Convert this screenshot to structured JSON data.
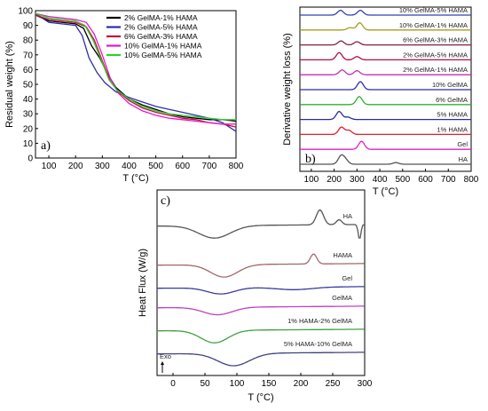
{
  "chart_data": [
    {
      "type": "line",
      "panel_label": "a)",
      "xlabel": "T (°C)",
      "ylabel": "Residual weight (%)",
      "xlim": [
        50,
        800
      ],
      "ylim": [
        0,
        100
      ],
      "xticks": [
        "100",
        "200",
        "300",
        "400",
        "500",
        "600",
        "700",
        "800"
      ],
      "yticks": [
        "0",
        "10",
        "20",
        "30",
        "40",
        "50",
        "60",
        "70",
        "80",
        "90",
        "100"
      ],
      "legend_position": "top-right",
      "series": [
        {
          "name": "2% GelMA-1% HAMA",
          "color": "#000000",
          "x": [
            50,
            100,
            200,
            230,
            260,
            290,
            320,
            350,
            400,
            450,
            500,
            550,
            600,
            650,
            700,
            750,
            800
          ],
          "y": [
            97,
            93,
            91,
            88,
            76,
            68,
            57,
            48,
            40,
            36,
            33,
            30,
            28,
            27,
            26,
            26,
            25
          ]
        },
        {
          "name": "2% GelMA-5% HAMA",
          "color": "#2e2ea8",
          "x": [
            50,
            100,
            200,
            225,
            250,
            280,
            310,
            350,
            400,
            450,
            500,
            550,
            600,
            650,
            700,
            750,
            800
          ],
          "y": [
            98,
            92,
            90,
            83,
            68,
            58,
            51,
            45,
            41,
            38,
            35,
            33,
            31,
            29,
            27,
            24,
            18
          ]
        },
        {
          "name": "6% GelMA-3% HAMA",
          "color": "#c0103a",
          "x": [
            50,
            100,
            200,
            240,
            270,
            300,
            330,
            360,
            400,
            450,
            500,
            550,
            600,
            650,
            700,
            750,
            800
          ],
          "y": [
            97,
            94,
            92,
            89,
            80,
            66,
            52,
            45,
            39,
            34,
            31,
            29,
            27,
            26,
            24,
            23,
            21
          ]
        },
        {
          "name": "10% GelMA-1% HAMA",
          "color": "#e619c8",
          "x": [
            50,
            100,
            200,
            240,
            270,
            300,
            330,
            360,
            400,
            450,
            500,
            550,
            600,
            650,
            700,
            750,
            800
          ],
          "y": [
            98,
            96,
            94,
            92,
            84,
            70,
            54,
            44,
            37,
            32,
            29,
            27,
            26,
            25,
            24,
            23,
            23
          ]
        },
        {
          "name": "10% GelMA-5% HAMA",
          "color": "#2ed12e",
          "x": [
            50,
            100,
            200,
            235,
            265,
            295,
            325,
            355,
            400,
            450,
            500,
            550,
            600,
            650,
            700,
            750,
            800
          ],
          "y": [
            98,
            95,
            93,
            90,
            80,
            67,
            53,
            46,
            40,
            35,
            32,
            30,
            29,
            28,
            27,
            26,
            26
          ]
        }
      ]
    },
    {
      "type": "line",
      "panel_label": "b)",
      "xlabel": "T (°C)",
      "ylabel": "Derivative weight loss (%)",
      "xlim": [
        50,
        800
      ],
      "xticks": [
        "100",
        "200",
        "300",
        "400",
        "500",
        "600",
        "700",
        "800"
      ],
      "y_ticks_shown": false,
      "series": [
        {
          "name": "HA",
          "color": "#555555",
          "peaks": [
            [
              230,
              1.0
            ],
            [
              250,
              0.5
            ],
            [
              470,
              0.2
            ]
          ]
        },
        {
          "name": "Gel",
          "color": "#e61ec8",
          "peaks": [
            [
              320,
              1.0
            ]
          ]
        },
        {
          "name": "1% HAMA",
          "color": "#e0202a",
          "peaks": [
            [
              232,
              0.9
            ],
            [
              265,
              0.5
            ]
          ]
        },
        {
          "name": "5% HAMA",
          "color": "#2a2aa8",
          "peaks": [
            [
              222,
              1.0
            ],
            [
              260,
              0.3
            ]
          ]
        },
        {
          "name": "6% GelMA",
          "color": "#30b030",
          "peaks": [
            [
              310,
              1.0
            ]
          ]
        },
        {
          "name": "10% GelMA",
          "color": "#2a2aa8",
          "peaks": [
            [
              315,
              1.0
            ]
          ]
        },
        {
          "name": "2% GelMA-1% HAMA",
          "color": "#c030b0",
          "peaks": [
            [
              235,
              0.6
            ],
            [
              300,
              0.5
            ]
          ]
        },
        {
          "name": "2% GelMA-5% HAMA",
          "color": "#b01040",
          "peaks": [
            [
              222,
              0.9
            ],
            [
              300,
              0.4
            ]
          ]
        },
        {
          "name": "6% GelMA-3% HAMA",
          "color": "#802040",
          "peaks": [
            [
              230,
              0.5
            ],
            [
              300,
              0.4
            ]
          ]
        },
        {
          "name": "10% GelMA-1% HAMA",
          "color": "#a0a020",
          "peaks": [
            [
              312,
              0.9
            ],
            [
              270,
              0.3
            ]
          ]
        },
        {
          "name": "10% GelMA-5% HAMA",
          "color": "#3040b0",
          "peaks": [
            [
              228,
              0.6
            ],
            [
              315,
              0.6
            ]
          ]
        }
      ]
    },
    {
      "type": "line",
      "panel_label": "c)",
      "xlabel": "T (°C)",
      "ylabel": "Heat Flux (W/g)",
      "xlim": [
        -25,
        300
      ],
      "xticks": [
        "0",
        "50",
        "100",
        "150",
        "200",
        "250",
        "300"
      ],
      "y_ticks_shown": false,
      "annotation": "Exo",
      "series": [
        {
          "name": "HA",
          "color": "#555555",
          "features": [
            [
              65,
              -1.0,
              35
            ],
            [
              230,
              1.2,
              8
            ],
            [
              260,
              0.4,
              6
            ],
            [
              292,
              -1.2,
              3
            ]
          ]
        },
        {
          "name": "HAMA",
          "color": "#a06868",
          "features": [
            [
              80,
              -1.0,
              30
            ],
            [
              220,
              0.8,
              7
            ]
          ]
        },
        {
          "name": "Gel",
          "color": "#3a3aa0",
          "features": [
            [
              75,
              -0.5,
              30
            ],
            [
              190,
              -0.2,
              40
            ]
          ]
        },
        {
          "name": "GelMA",
          "color": "#c040c0",
          "features": [
            [
              70,
              -0.6,
              32
            ]
          ]
        },
        {
          "name": "1% HAMA-2% GelMA",
          "color": "#40a040",
          "features": [
            [
              65,
              -1.0,
              30
            ]
          ]
        },
        {
          "name": "5% HAMA-10% GelMA",
          "color": "#404080",
          "features": [
            [
              95,
              -1.0,
              35
            ]
          ]
        }
      ]
    }
  ]
}
